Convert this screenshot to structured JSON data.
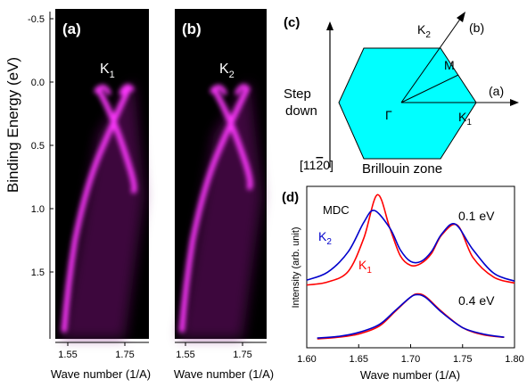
{
  "arpes": {
    "panel_a_label": "(a)",
    "panel_b_label": "(b)",
    "point_a": "K",
    "point_a_sub": "1",
    "point_b": "K",
    "point_b_sub": "2",
    "ylabel": "Binding Energy (eV)",
    "xlabel": "Wave number (1/A)",
    "x_ticks": [
      "1.55",
      "1.75"
    ],
    "y_ticks": [
      "-0.5",
      "0.0",
      "0.5",
      "1.0",
      "1.5"
    ],
    "band_color": "#ff33ff"
  },
  "bz": {
    "panel_label": "(c)",
    "k2": "K",
    "k2_sub": "2",
    "b_label": "(b)",
    "m_label": "M",
    "a_label": "(a)",
    "gamma_label": "Γ",
    "k1": "K",
    "k1_sub": "1",
    "step_line1": "Step",
    "step_line2": "down",
    "direction_label": "[11¯20]",
    "zone_label": "Brillouin zone",
    "hex_color": "#00ffff"
  },
  "chart_data": [
    {
      "type": "line",
      "title": "",
      "panel": "(d)",
      "xlabel": "Wave number (1/A)",
      "ylabel": "Intensity (arb. unit)",
      "xlim": [
        1.6,
        1.8
      ],
      "x_ticks": [
        "1.60",
        "1.65",
        "1.70",
        "1.75",
        "1.80"
      ],
      "annotations": [
        "MDC",
        "0.1 eV",
        "0.4 eV"
      ],
      "series": [
        {
          "name": "K1",
          "color": "#ff0000",
          "group": "0.1 eV",
          "x": [
            1.6,
            1.62,
            1.64,
            1.655,
            1.668,
            1.68,
            1.69,
            1.7,
            1.71,
            1.72,
            1.73,
            1.745,
            1.76,
            1.78,
            1.8
          ],
          "y": [
            0.04,
            0.07,
            0.18,
            0.52,
            0.96,
            0.62,
            0.34,
            0.24,
            0.26,
            0.36,
            0.55,
            0.65,
            0.32,
            0.12,
            0.06
          ]
        },
        {
          "name": "K2",
          "color": "#0000cc",
          "group": "0.1 eV",
          "x": [
            1.6,
            1.62,
            1.64,
            1.655,
            1.665,
            1.68,
            1.69,
            1.7,
            1.71,
            1.72,
            1.73,
            1.743,
            1.76,
            1.78,
            1.8
          ],
          "y": [
            0.09,
            0.17,
            0.38,
            0.68,
            0.8,
            0.62,
            0.4,
            0.28,
            0.28,
            0.38,
            0.56,
            0.66,
            0.4,
            0.16,
            0.08
          ]
        },
        {
          "name": "K1",
          "color": "#ff0000",
          "group": "0.4 eV",
          "x": [
            1.61,
            1.63,
            1.65,
            1.67,
            1.685,
            1.7,
            1.707,
            1.715,
            1.73,
            1.75,
            1.77,
            1.79
          ],
          "y": [
            0.0,
            0.02,
            0.06,
            0.16,
            0.34,
            0.52,
            0.56,
            0.52,
            0.34,
            0.14,
            0.05,
            0.02
          ]
        },
        {
          "name": "K2",
          "color": "#0000cc",
          "group": "0.4 eV",
          "x": [
            1.61,
            1.63,
            1.65,
            1.67,
            1.685,
            1.7,
            1.707,
            1.715,
            1.73,
            1.75,
            1.77,
            1.79
          ],
          "y": [
            0.01,
            0.03,
            0.08,
            0.18,
            0.35,
            0.52,
            0.55,
            0.51,
            0.33,
            0.14,
            0.06,
            0.02
          ]
        }
      ],
      "legend": [
        "K2",
        "K1"
      ]
    }
  ]
}
